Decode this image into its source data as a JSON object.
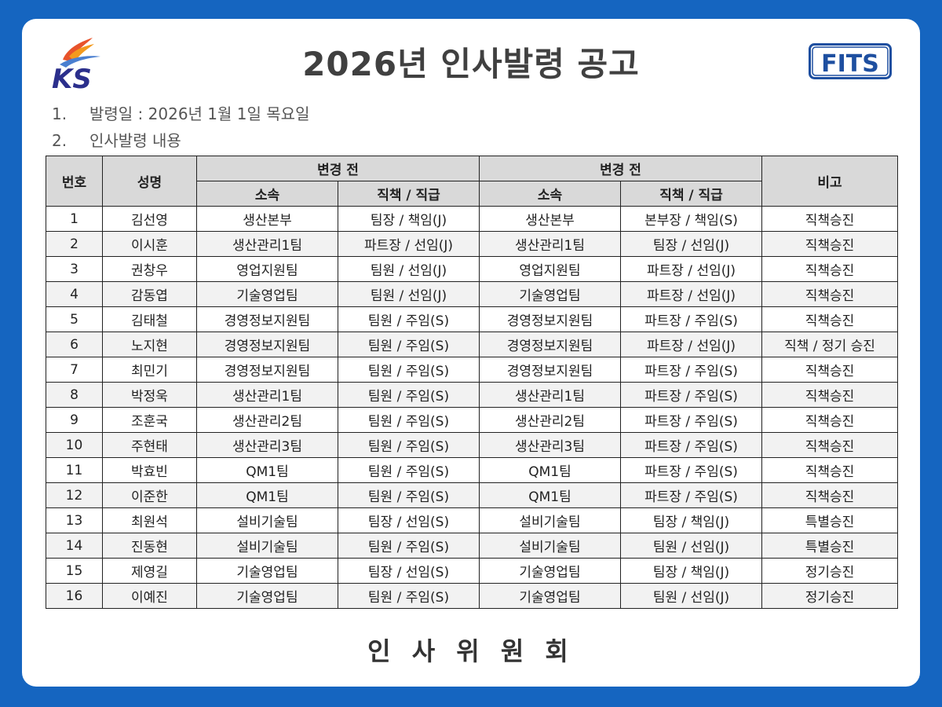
{
  "header": {
    "title": "2026년 인사발령 공고",
    "logo_left": "KS",
    "logo_right": "FITS"
  },
  "info": [
    {
      "num": "1.",
      "text": "발령일 : 2026년 1월 1일 목요일"
    },
    {
      "num": "2.",
      "text": "인사발령 내용"
    }
  ],
  "table": {
    "headers": {
      "no": "번호",
      "name": "성명",
      "before": "변경 전",
      "after": "변경 전",
      "dept": "소속",
      "position": "직책 / 직급",
      "dept2": "소속",
      "position2": "직책 / 직급",
      "note": "비고"
    },
    "rows": [
      {
        "no": "1",
        "name": "김선영",
        "from_dept": "생산본부",
        "from_pos": "팀장 / 책임(J)",
        "to_dept": "생산본부",
        "to_pos": "본부장 / 책임(S)",
        "note": "직책승진"
      },
      {
        "no": "2",
        "name": "이시훈",
        "from_dept": "생산관리1팀",
        "from_pos": "파트장 / 선임(J)",
        "to_dept": "생산관리1팀",
        "to_pos": "팀장 / 선임(J)",
        "note": "직책승진"
      },
      {
        "no": "3",
        "name": "권창우",
        "from_dept": "영업지원팀",
        "from_pos": "팀원 / 선임(J)",
        "to_dept": "영업지원팀",
        "to_pos": "파트장 / 선임(J)",
        "note": "직책승진"
      },
      {
        "no": "4",
        "name": "감동엽",
        "from_dept": "기술영업팀",
        "from_pos": "팀원 / 선임(J)",
        "to_dept": "기술영업팀",
        "to_pos": "파트장 / 선임(J)",
        "note": "직책승진"
      },
      {
        "no": "5",
        "name": "김태철",
        "from_dept": "경영정보지원팀",
        "from_pos": "팀원 / 주임(S)",
        "to_dept": "경영정보지원팀",
        "to_pos": "파트장 / 주임(S)",
        "note": "직책승진"
      },
      {
        "no": "6",
        "name": "노지현",
        "from_dept": "경영정보지원팀",
        "from_pos": "팀원 / 주임(S)",
        "to_dept": "경영정보지원팀",
        "to_pos": "파트장 / 선임(J)",
        "note": "직책 / 정기 승진"
      },
      {
        "no": "7",
        "name": "최민기",
        "from_dept": "경영정보지원팀",
        "from_pos": "팀원 / 주임(S)",
        "to_dept": "경영정보지원팀",
        "to_pos": "파트장 / 주임(S)",
        "note": "직책승진"
      },
      {
        "no": "8",
        "name": "박정욱",
        "from_dept": "생산관리1팀",
        "from_pos": "팀원 / 주임(S)",
        "to_dept": "생산관리1팀",
        "to_pos": "파트장 / 주임(S)",
        "note": "직책승진"
      },
      {
        "no": "9",
        "name": "조훈국",
        "from_dept": "생산관리2팀",
        "from_pos": "팀원 / 주임(S)",
        "to_dept": "생산관리2팀",
        "to_pos": "파트장 / 주임(S)",
        "note": "직책승진"
      },
      {
        "no": "10",
        "name": "주현태",
        "from_dept": "생산관리3팀",
        "from_pos": "팀원 / 주임(S)",
        "to_dept": "생산관리3팀",
        "to_pos": "파트장 / 주임(S)",
        "note": "직책승진"
      },
      {
        "no": "11",
        "name": "박효빈",
        "from_dept": "QM1팀",
        "from_pos": "팀원 / 주임(S)",
        "to_dept": "QM1팀",
        "to_pos": "파트장 / 주임(S)",
        "note": "직책승진"
      },
      {
        "no": "12",
        "name": "이준한",
        "from_dept": "QM1팀",
        "from_pos": "팀원 / 주임(S)",
        "to_dept": "QM1팀",
        "to_pos": "파트장 / 주임(S)",
        "note": "직책승진"
      },
      {
        "no": "13",
        "name": "최원석",
        "from_dept": "설비기술팀",
        "from_pos": "팀장 / 선임(S)",
        "to_dept": "설비기술팀",
        "to_pos": "팀장 / 책임(J)",
        "note": "특별승진"
      },
      {
        "no": "14",
        "name": "진동현",
        "from_dept": "설비기술팀",
        "from_pos": "팀원 / 주임(S)",
        "to_dept": "설비기술팀",
        "to_pos": "팀원 / 선임(J)",
        "note": "특별승진"
      },
      {
        "no": "15",
        "name": "제영길",
        "from_dept": "기술영업팀",
        "from_pos": "팀장 / 선임(S)",
        "to_dept": "기술영업팀",
        "to_pos": "팀장 / 책임(J)",
        "note": "정기승진"
      },
      {
        "no": "16",
        "name": "이예진",
        "from_dept": "기술영업팀",
        "from_pos": "팀원 / 주임(S)",
        "to_dept": "기술영업팀",
        "to_pos": "팀원 / 선임(J)",
        "note": "정기승진"
      }
    ]
  },
  "footer": "인 사 위 원 회",
  "colors": {
    "background": "#1565c0",
    "header_fill": "#d9d9d9",
    "ks_blue": "#2b2f8c",
    "ks_flame": "#e8532b",
    "fits_blue": "#1e4fa0"
  }
}
